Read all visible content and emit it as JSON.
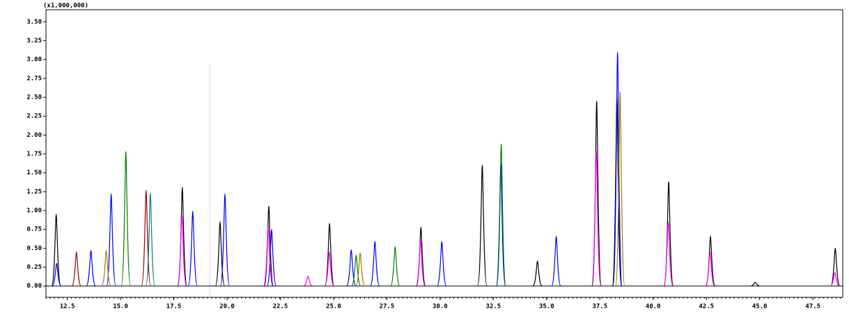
{
  "chart_data": {
    "type": "chromatogram",
    "y_multiplier_label": "(x1,000,000)",
    "xlim": [
      11.5,
      48.9
    ],
    "ylim": [
      -0.15,
      3.66
    ],
    "xticks": [
      12.5,
      {
        "value": 15,
        "label": "15.0"
      },
      17.5,
      {
        "value": 20,
        "label": "20.0"
      },
      22.5,
      {
        "value": 25,
        "label": "25.0"
      },
      27.5,
      {
        "value": 30,
        "label": "30.0"
      },
      32.5,
      {
        "value": 35,
        "label": "35.0"
      },
      37.5,
      {
        "value": 40,
        "label": "40.0"
      },
      42.5,
      {
        "value": 45,
        "label": "45.0"
      },
      47.5
    ],
    "yticks": [
      {
        "value": 0,
        "label": "0.00"
      },
      {
        "value": 0.25,
        "label": "0.25"
      },
      {
        "value": 0.5,
        "label": "0.50"
      },
      {
        "value": 0.75,
        "label": "0.75"
      },
      {
        "value": 1,
        "label": "1.00"
      },
      {
        "value": 1.25,
        "label": "1.25"
      },
      {
        "value": 1.5,
        "label": "1.50"
      },
      {
        "value": 1.75,
        "label": "1.75"
      },
      {
        "value": 2,
        "label": "2.00"
      },
      {
        "value": 2.25,
        "label": "2.25"
      },
      {
        "value": 2.5,
        "label": "2.50"
      },
      {
        "value": 2.75,
        "label": "2.75"
      },
      {
        "value": 3,
        "label": "3.00"
      },
      {
        "value": 3.25,
        "label": "3.25"
      },
      {
        "value": 3.5,
        "label": "3.50"
      }
    ],
    "series": [
      {
        "color": "#000000",
        "x": [
          11.98,
          17.9,
          19.67,
          21.96,
          24.81,
          29.1,
          31.98,
          34.57,
          37.35,
          38.3,
          40.73,
          42.69,
          44.79,
          48.55
        ],
        "values": [
          0.95,
          1.31,
          0.85,
          1.06,
          0.83,
          0.78,
          1.6,
          0.33,
          2.45,
          2.5,
          1.38,
          0.66,
          0.05,
          0.5
        ]
      },
      {
        "color": "#0000ff",
        "x": [
          12.0,
          13.61,
          14.56,
          18.39,
          19.9,
          22.09,
          25.83,
          26.94,
          30.08,
          32.85,
          35.45,
          38.33
        ],
        "values": [
          0.3,
          0.47,
          1.22,
          0.99,
          1.22,
          0.75,
          0.48,
          0.59,
          0.59,
          1.62,
          0.66,
          3.1
        ]
      },
      {
        "color": "#008000",
        "x": [
          15.25,
          26.06,
          27.89,
          32.87
        ],
        "values": [
          1.78,
          0.41,
          0.52,
          1.88
        ]
      },
      {
        "color": "#a00000",
        "x": [
          12.93,
          16.2
        ],
        "values": [
          0.45,
          1.27
        ]
      },
      {
        "color": "#ff00ff",
        "x": [
          17.88,
          21.93,
          23.8,
          24.8,
          29.08,
          37.33,
          40.71,
          42.67,
          48.53
        ],
        "values": [
          0.93,
          0.78,
          0.13,
          0.45,
          0.6,
          1.8,
          0.85,
          0.45,
          0.18
        ]
      },
      {
        "color": "#a08000",
        "x": [
          14.33,
          26.25,
          38.45
        ],
        "values": [
          0.47,
          0.44,
          2.57
        ]
      },
      {
        "color": "#008080",
        "x": [
          16.4
        ],
        "values": [
          1.23
        ]
      }
    ]
  }
}
